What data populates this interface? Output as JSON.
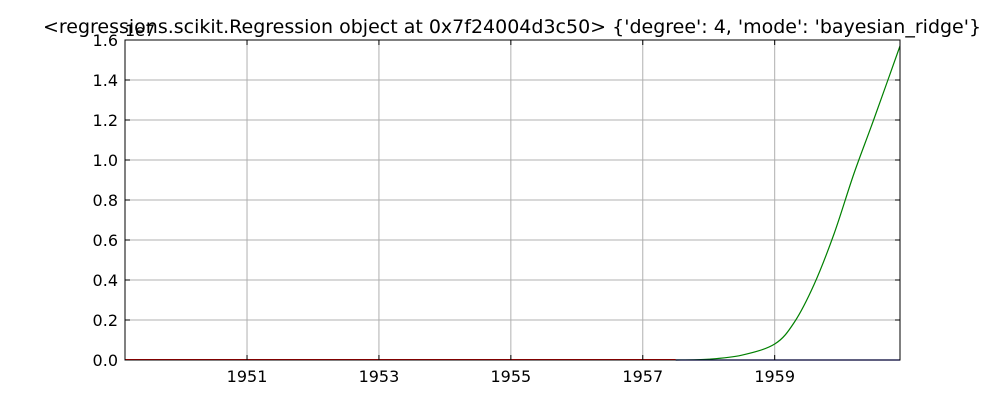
{
  "chart_data": {
    "type": "line",
    "title": "<regressions.scikit.Regression object at 0x7f24004d3c50> {'degree': 4, 'mode': 'bayesian_ridge'}",
    "y_offset_label": "1e7",
    "xlim": [
      1949.15,
      1960.9
    ],
    "ylim": [
      0,
      1.6
    ],
    "y_scale_factor": 10000000,
    "grid": true,
    "x_ticks": [
      1951,
      1953,
      1955,
      1957,
      1959
    ],
    "x_tick_labels": [
      "1951",
      "1953",
      "1955",
      "1957",
      "1959"
    ],
    "y_ticks": [
      0,
      0.2,
      0.4,
      0.6,
      0.8,
      1.0,
      1.2,
      1.4,
      1.6
    ],
    "y_tick_labels": [
      "0.0",
      "0.2",
      "0.4",
      "0.6",
      "0.8",
      "1.0",
      "1.2",
      "1.4",
      "1.6"
    ],
    "series": [
      {
        "color": "#008000",
        "x": [
          1957.5,
          1958.0,
          1958.5,
          1959.0,
          1959.3,
          1959.6,
          1959.9,
          1960.2,
          1960.5,
          1960.9
        ],
        "y": [
          0.0,
          0.004,
          0.024,
          0.08,
          0.19,
          0.38,
          0.63,
          0.93,
          1.2,
          1.57
        ]
      },
      {
        "color": "#ff0000",
        "x": [
          1949.15,
          1957.5
        ],
        "y": [
          0.002,
          0.002
        ]
      },
      {
        "color": "#0000ff",
        "x": [
          1957.5,
          1960.9
        ],
        "y": [
          0.0,
          0.0
        ]
      }
    ]
  }
}
